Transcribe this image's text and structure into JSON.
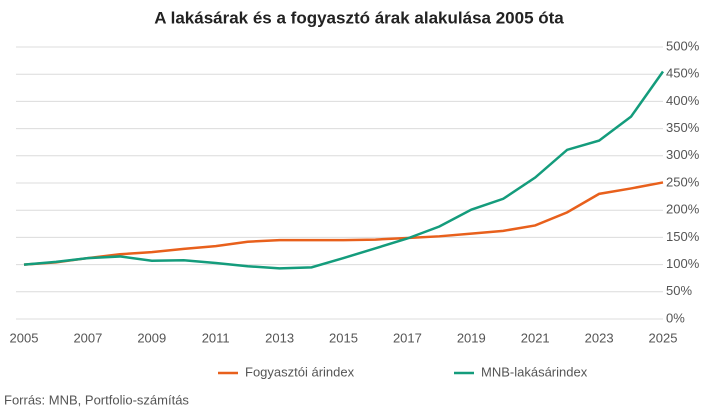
{
  "chart_data": {
    "type": "line",
    "title": "A lakásárak és a fogyasztó árak alakulása 2005 óta",
    "source": "Forrás: MNB, Portfolio-számítás",
    "x": [
      2005,
      2006,
      2007,
      2008,
      2009,
      2010,
      2011,
      2012,
      2013,
      2014,
      2015,
      2016,
      2017,
      2018,
      2019,
      2020,
      2021,
      2022,
      2023,
      2024,
      2025
    ],
    "xlim": [
      2005,
      2025
    ],
    "xticks": [
      2005,
      2007,
      2009,
      2011,
      2013,
      2015,
      2017,
      2019,
      2021,
      2023,
      2025
    ],
    "ylim": [
      0,
      500
    ],
    "yticks": [
      {
        "value": 0,
        "label": "0%"
      },
      {
        "value": 50,
        "label": "50%"
      },
      {
        "value": 100,
        "label": "100%"
      },
      {
        "value": 150,
        "label": "150%"
      },
      {
        "value": 200,
        "label": "200%"
      },
      {
        "value": 250,
        "label": "250%"
      },
      {
        "value": 300,
        "label": "300%"
      },
      {
        "value": 350,
        "label": "350%"
      },
      {
        "value": 400,
        "label": "400%"
      },
      {
        "value": 450,
        "label": "450%"
      },
      {
        "value": 500,
        "label": "500%"
      }
    ],
    "grid": true,
    "series": [
      {
        "name": "Fogyasztói árindex",
        "color": "#e8601c",
        "values": [
          100,
          104,
          112,
          119,
          123,
          129,
          134,
          142,
          145,
          145,
          145,
          146,
          149,
          152,
          157,
          162,
          172,
          196,
          230,
          240,
          251
        ]
      },
      {
        "name": "MNB-lakásárindex",
        "color": "#149c7c",
        "values": [
          100,
          105,
          112,
          115,
          107,
          108,
          103,
          97,
          93,
          95,
          112,
          130,
          148,
          170,
          201,
          221,
          260,
          311,
          328,
          372,
          455
        ]
      }
    ]
  }
}
